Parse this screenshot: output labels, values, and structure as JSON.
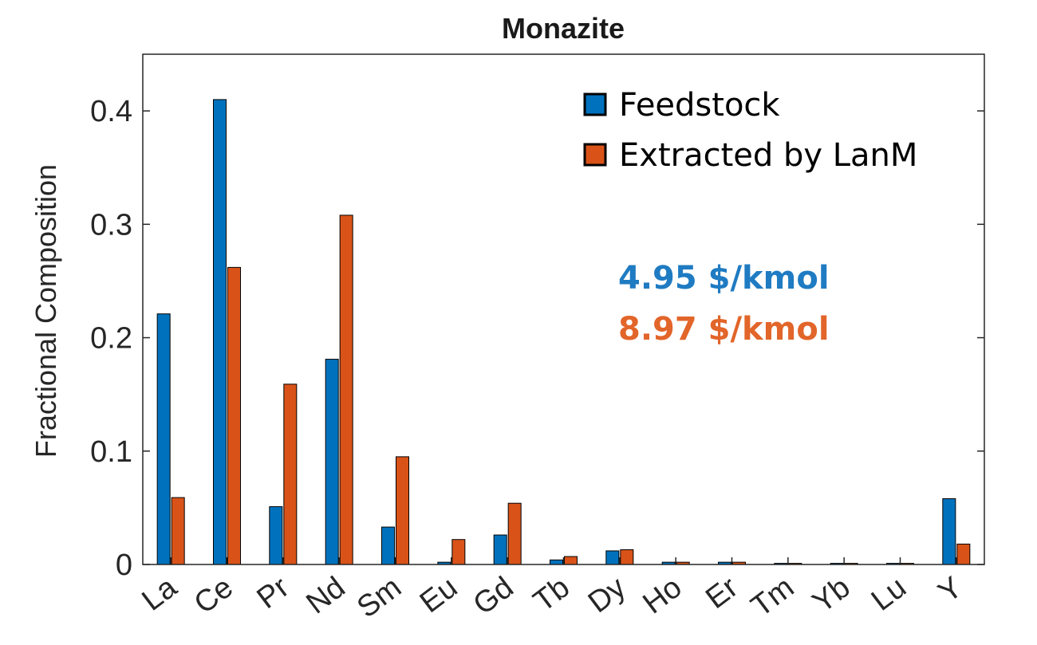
{
  "chart_data": {
    "type": "bar",
    "title": "Monazite",
    "xlabel": "",
    "ylabel": "Fractional Composition",
    "ylim": [
      0,
      0.45
    ],
    "yticks": [
      0,
      0.1,
      0.2,
      0.3,
      0.4
    ],
    "ytick_labels": [
      "0",
      "0.1",
      "0.2",
      "0.3",
      "0.4"
    ],
    "categories": [
      "La",
      "Ce",
      "Pr",
      "Nd",
      "Sm",
      "Eu",
      "Gd",
      "Tb",
      "Dy",
      "Ho",
      "Er",
      "Tm",
      "Yb",
      "Lu",
      "Y"
    ],
    "series": [
      {
        "name": "Feedstock",
        "color": "#0072BD",
        "values": [
          0.221,
          0.41,
          0.051,
          0.181,
          0.033,
          0.002,
          0.026,
          0.004,
          0.012,
          0.002,
          0.002,
          0.001,
          0.001,
          0.001,
          0.058
        ]
      },
      {
        "name": "Extracted by LanM",
        "color": "#D95319",
        "values": [
          0.059,
          0.262,
          0.159,
          0.308,
          0.095,
          0.022,
          0.054,
          0.007,
          0.013,
          0.002,
          0.002,
          0.001,
          0.001,
          0.001,
          0.018
        ]
      }
    ],
    "legend_position": "top-right",
    "grid": false,
    "annotations": [
      {
        "text": "4.95 $/kmol",
        "color": "#1F7BC2"
      },
      {
        "text": "8.97 $/kmol",
        "color": "#E2652A"
      }
    ]
  }
}
